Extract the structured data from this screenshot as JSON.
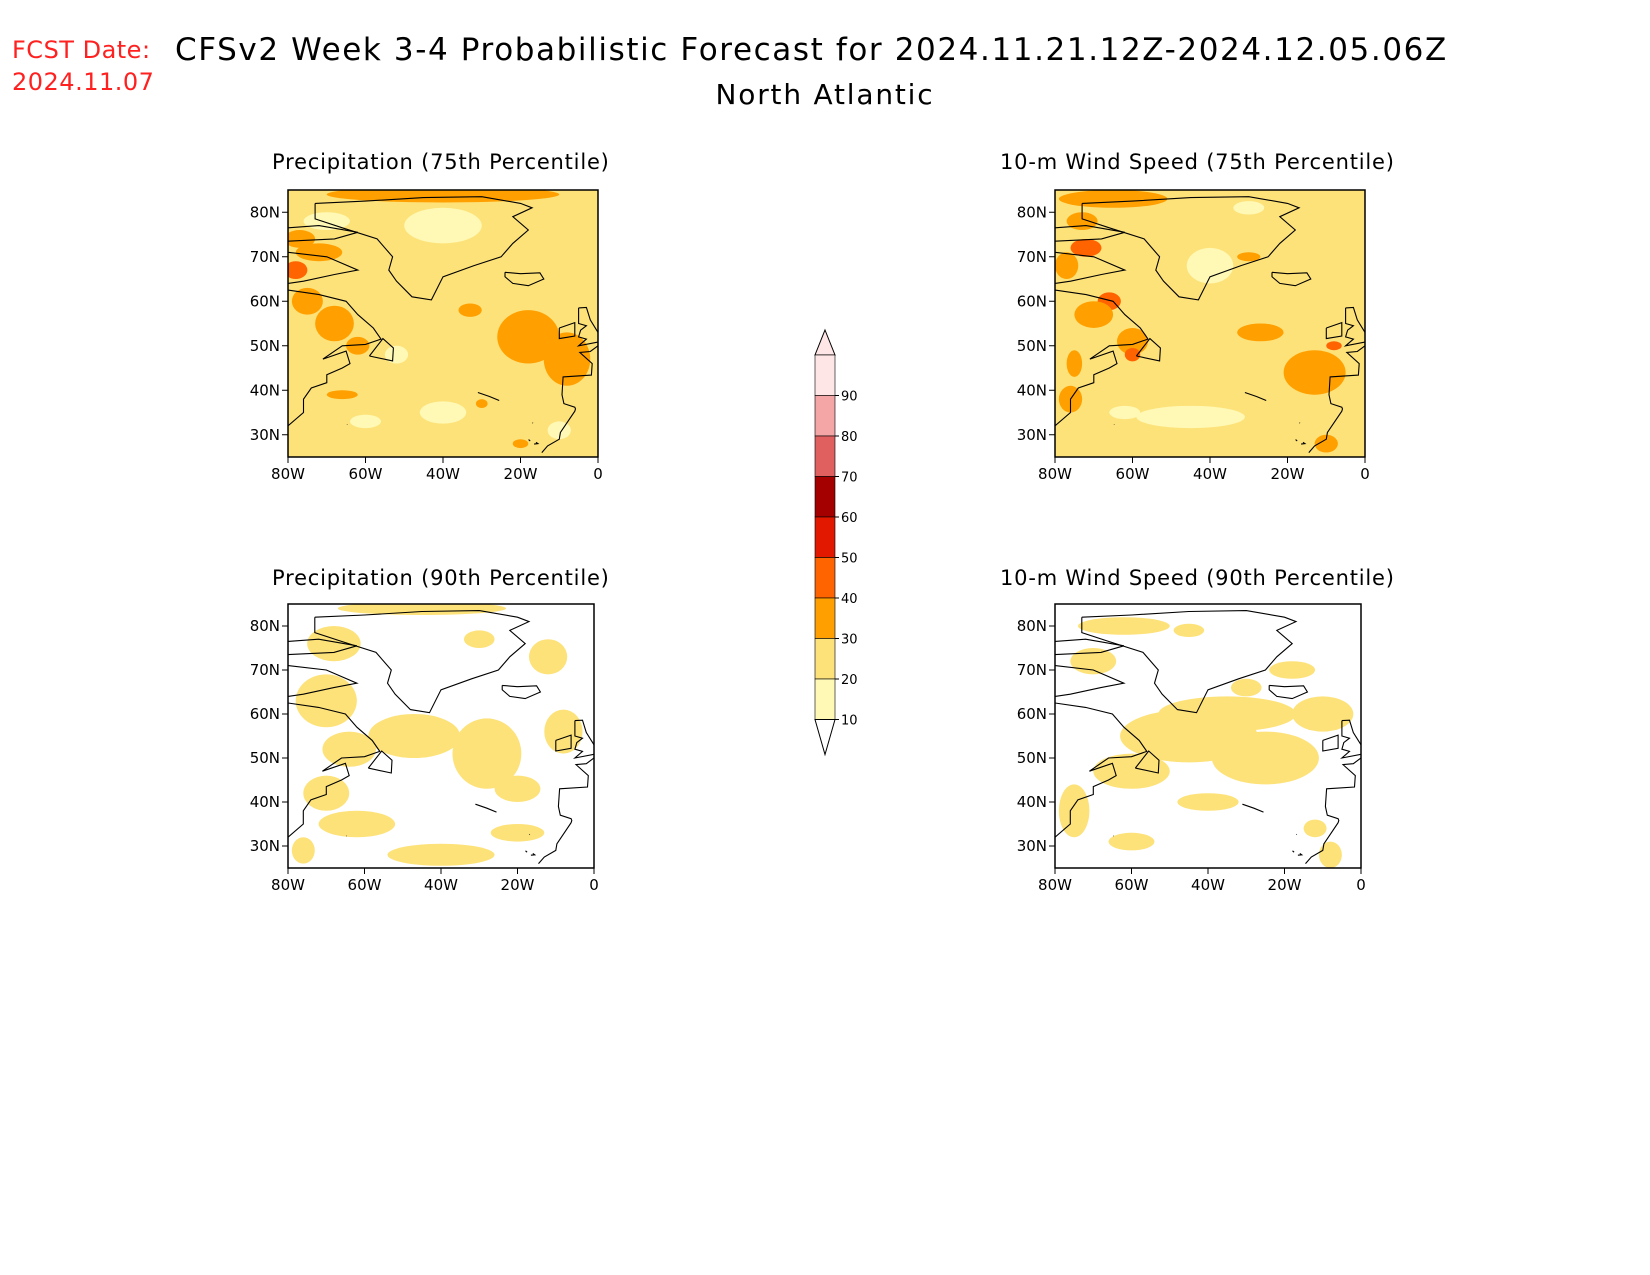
{
  "header": {
    "fcst_label": "FCST Date:",
    "fcst_date": "2024.11.07",
    "title": "CFSv2 Week 3-4 Probabilistic Forecast for 2024.11.21.12Z-2024.12.05.06Z",
    "region": "North Atlantic"
  },
  "axes": {
    "lat_ticks": [
      "80N",
      "70N",
      "60N",
      "50N",
      "40N",
      "30N"
    ],
    "lon_ticks": [
      "80W",
      "60W",
      "40W",
      "20W",
      "0"
    ]
  },
  "panels": [
    {
      "title": "Precipitation (75th Percentile)",
      "field": "precip75",
      "background_level": 1
    },
    {
      "title": "10-m Wind Speed (75th Percentile)",
      "field": "wind75",
      "background_level": 1
    },
    {
      "title": "Precipitation (90th Percentile)",
      "field": "precip90",
      "background_level": 0
    },
    {
      "title": "10-m Wind Speed (90th Percentile)",
      "field": "wind90",
      "background_level": 0
    }
  ],
  "colorbar": {
    "levels": [
      "10",
      "20",
      "30",
      "40",
      "50",
      "60",
      "70",
      "80",
      "90"
    ],
    "colors": [
      "#fff9b5",
      "#fde27a",
      "#ffa000",
      "#ff6400",
      "#e21800",
      "#a50000",
      "#e06060",
      "#f4a6a6",
      "#ffe6e6"
    ]
  }
}
